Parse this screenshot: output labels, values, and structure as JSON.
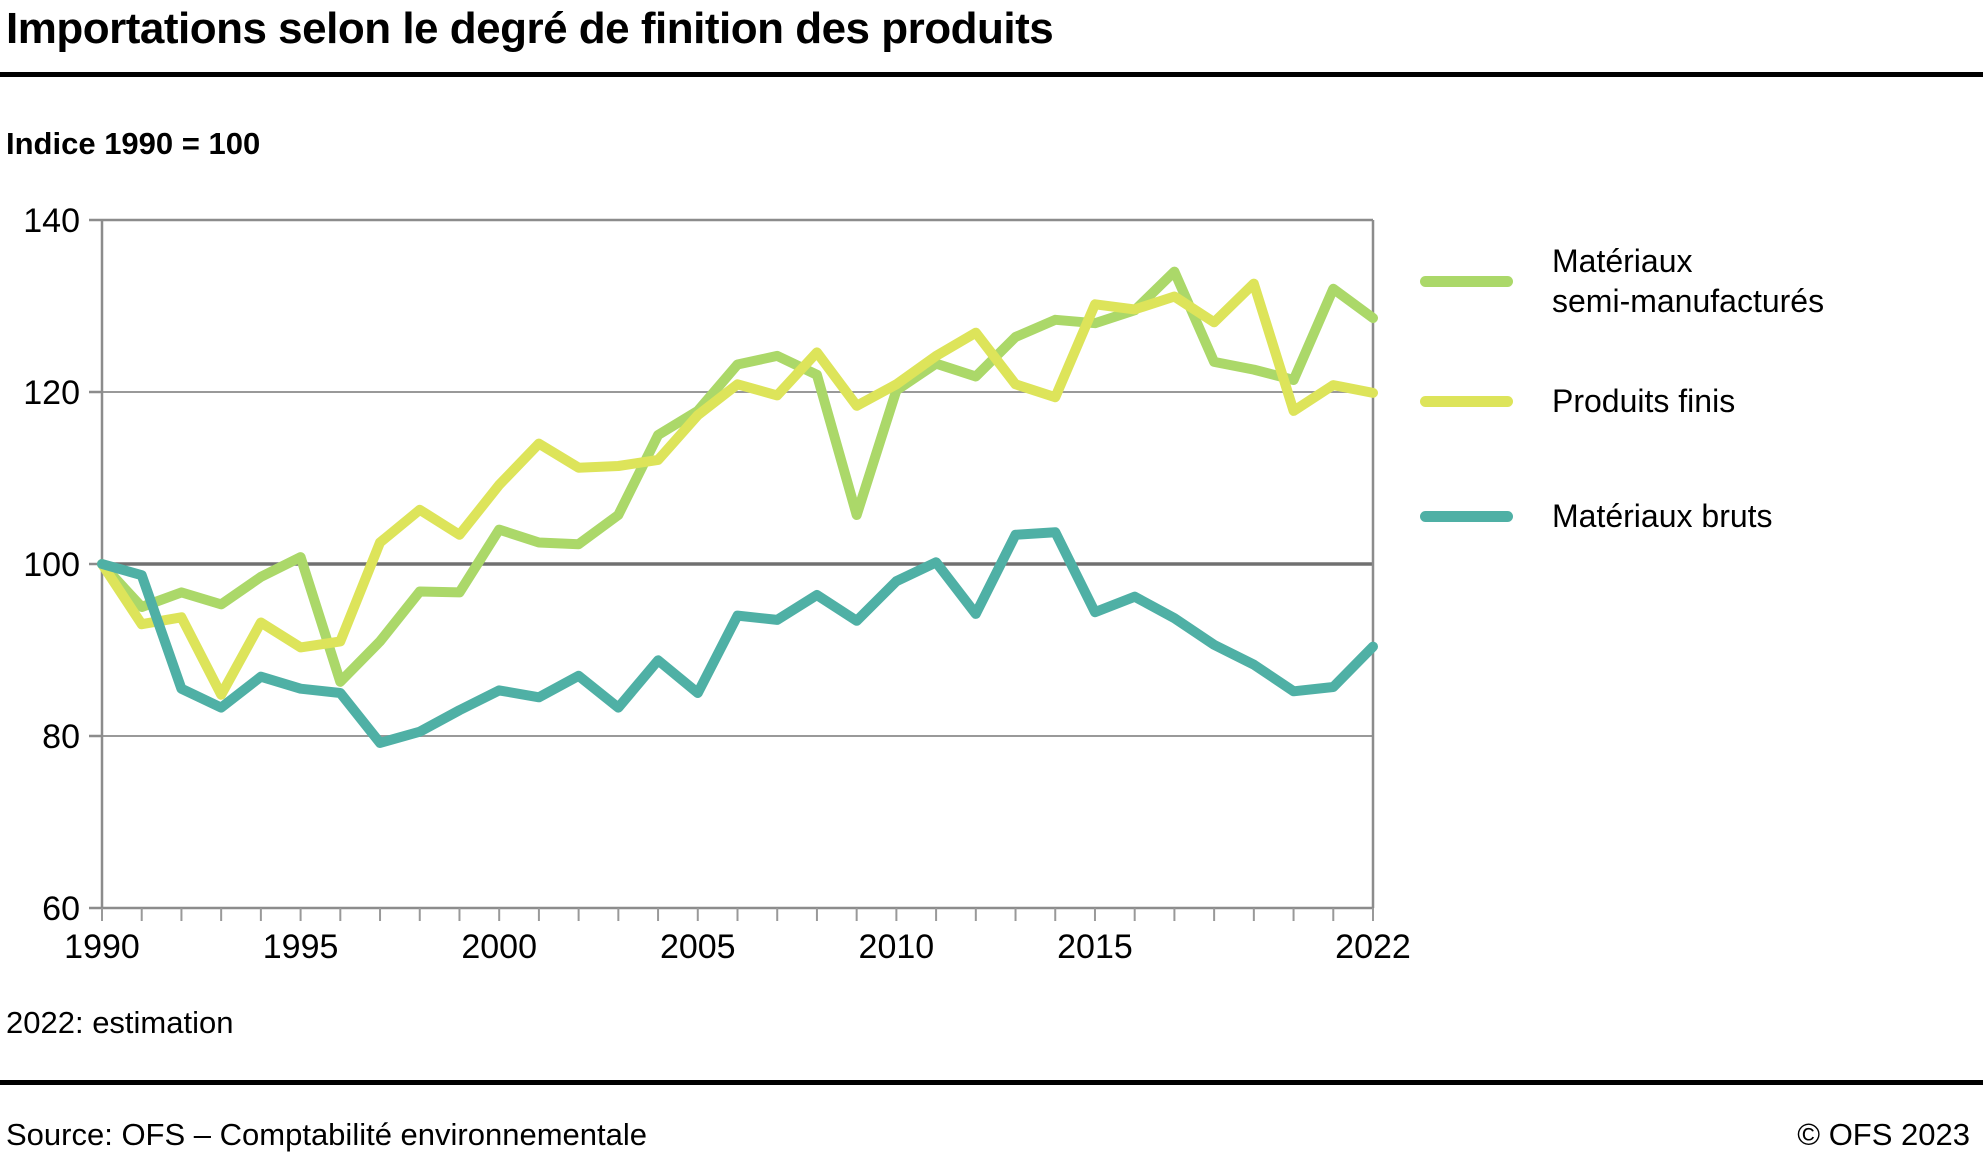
{
  "header": {
    "title": "Importations selon le degré de finition des produits",
    "subtitle": "Indice 1990 = 100"
  },
  "legend": {
    "items": [
      {
        "line1": "Matériaux",
        "line2": "semi-manufacturés",
        "color": "#abd869"
      },
      {
        "line1": "Produits finis",
        "line2": "",
        "color": "#dde45a"
      },
      {
        "line1": "Matériaux bruts",
        "line2": "",
        "color": "#4fb0a5"
      }
    ]
  },
  "footnote": "2022: estimation",
  "footer": {
    "source": "Source: OFS – Comptabilité environnementale",
    "copyright": "© OFS 2023"
  },
  "colors": {
    "grid": "#999999",
    "grid_emphasis": "#707070",
    "box": "#8c8c8c",
    "text": "#000000"
  },
  "chart_data": {
    "type": "line",
    "title": "Importations selon le degré de finition des produits",
    "ylabel": "Indice 1990 = 100",
    "xlabel": "",
    "grid": "horizontal",
    "legend_position": "right",
    "ylim": [
      60,
      140
    ],
    "y_ticks": [
      60,
      80,
      100,
      120,
      140
    ],
    "emphasized_gridline": 100,
    "x_range": [
      1990,
      2022
    ],
    "x_major_ticks": [
      1990,
      1995,
      2000,
      2005,
      2010,
      2015,
      2022
    ],
    "x": [
      1990,
      1991,
      1992,
      1993,
      1994,
      1995,
      1996,
      1997,
      1998,
      1999,
      2000,
      2001,
      2002,
      2003,
      2004,
      2005,
      2006,
      2007,
      2008,
      2009,
      2010,
      2011,
      2012,
      2013,
      2014,
      2015,
      2016,
      2017,
      2018,
      2019,
      2020,
      2021,
      2022
    ],
    "series": [
      {
        "name": "Matériaux semi-manufacturés",
        "color": "#abd869",
        "values": [
          100,
          95,
          96.7,
          95.3,
          98.5,
          100.8,
          86.3,
          91,
          96.8,
          96.7,
          104,
          102.5,
          102.3,
          105.7,
          115,
          117.8,
          123.2,
          124.2,
          122,
          105.7,
          120.2,
          123.3,
          121.8,
          126.4,
          128.4,
          128,
          129.5,
          134,
          123.5,
          122.6,
          121.4,
          132,
          128.6
        ]
      },
      {
        "name": "Produits finis",
        "color": "#dde45a",
        "values": [
          100,
          93,
          93.8,
          84.8,
          93.2,
          90.3,
          91,
          102.5,
          106.3,
          103.4,
          109.2,
          114,
          111.2,
          111.4,
          112.1,
          117.3,
          120.9,
          119.6,
          124.6,
          118.4,
          120.9,
          124.2,
          126.9,
          120.9,
          119.4,
          130.2,
          129.6,
          131.1,
          128.1,
          132.6,
          117.8,
          120.8,
          119.9
        ]
      },
      {
        "name": "Matériaux bruts",
        "color": "#4fb0a5",
        "values": [
          100,
          98.7,
          85.5,
          83.3,
          86.9,
          85.5,
          85,
          79.2,
          80.5,
          83,
          85.3,
          84.5,
          87,
          83.3,
          88.8,
          85,
          94,
          93.5,
          96.4,
          93.4,
          98,
          100.2,
          94.2,
          103.4,
          103.7,
          94.4,
          96.2,
          93.7,
          90.6,
          88.3,
          85.2,
          85.7,
          90.4
        ]
      }
    ],
    "footnote": "2022: estimation"
  }
}
